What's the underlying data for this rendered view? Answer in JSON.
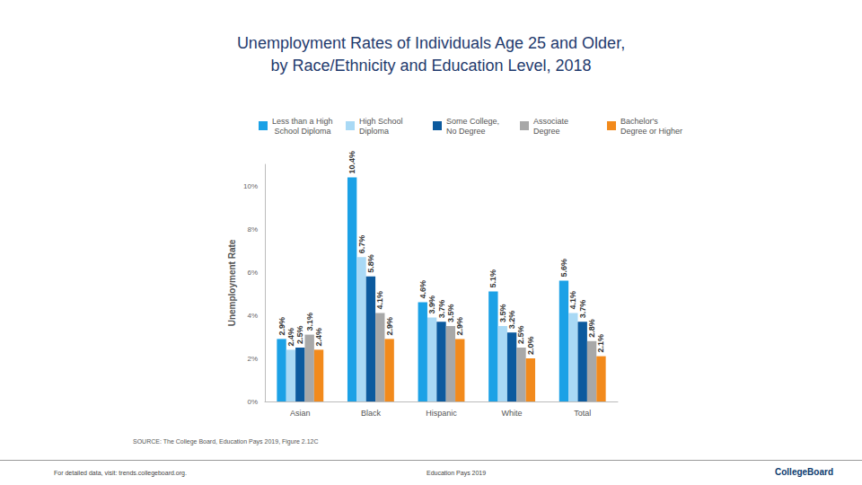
{
  "chart_data": {
    "type": "bar",
    "title": "Unemployment Rates of Individuals Age 25 and Older,\nby Race/Ethnicity and Education Level, 2018",
    "y_label": "Unemployment Rate",
    "categories": [
      "Asian",
      "Black",
      "Hispanic",
      "White",
      "Total"
    ],
    "series": [
      {
        "name": "Less than a High School Diploma",
        "color": "#1ba1e6",
        "values": [
          2.9,
          10.4,
          4.6,
          5.1,
          5.6
        ],
        "value_labels": [
          "2.9%",
          "10.4%",
          "4.6%",
          "5.1%",
          "5.6%"
        ]
      },
      {
        "name": "High School Diploma",
        "color": "#a9d9f5",
        "values": [
          2.4,
          6.7,
          3.9,
          3.5,
          4.1
        ],
        "value_labels": [
          "2.4%",
          "6.7%",
          "3.9%",
          "3.5%",
          "4.1%"
        ]
      },
      {
        "name": "Some College, No Degree",
        "color": "#0c5a9e",
        "values": [
          2.5,
          5.8,
          3.7,
          3.2,
          3.7
        ],
        "value_labels": [
          "2.5%",
          "5.8%",
          "3.7%",
          "3.2%",
          "3.7%"
        ]
      },
      {
        "name": "Associate Degree",
        "color": "#a8a8a8",
        "values": [
          3.1,
          4.1,
          3.5,
          2.5,
          2.8
        ],
        "value_labels": [
          "3.1%",
          "4.1%",
          "3.5%",
          "2.5%",
          "2.8%"
        ]
      },
      {
        "name": "Bachelor's Degree or Higher",
        "color": "#f28a1c",
        "values": [
          2.4,
          2.9,
          2.9,
          2.0,
          2.1
        ],
        "value_labels": [
          "2.4%",
          "2.9%",
          "2.9%",
          "2.0%",
          "2.1%"
        ]
      }
    ],
    "ylim": [
      0,
      11
    ],
    "yticks": [
      {
        "value": 0,
        "label": "0%"
      },
      {
        "value": 2,
        "label": "2%"
      },
      {
        "value": 4,
        "label": "4%"
      },
      {
        "value": 6,
        "label": "6%"
      },
      {
        "value": 8,
        "label": "8%"
      },
      {
        "value": 10,
        "label": "10%"
      }
    ],
    "grid": false,
    "legend": "top",
    "data_labels": true,
    "annotations": [
      "SOURCE: The College Board, Education Pays 2019, Figure 2.12C",
      "For detailed data, visit: trends.collegeboard.org.",
      "Education Pays 2019",
      "CollegeBoard"
    ]
  }
}
